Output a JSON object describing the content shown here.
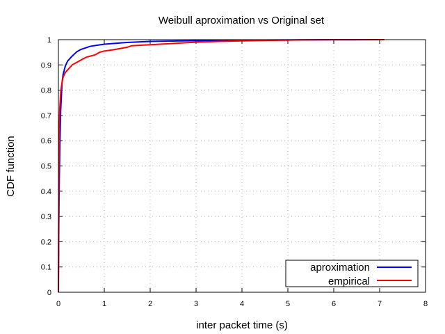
{
  "chart_data": {
    "type": "line",
    "title": "Weibull aproximation vs Original set",
    "xlabel": "inter packet time (s)",
    "ylabel": "CDF function",
    "xlim": [
      0,
      8
    ],
    "ylim": [
      0,
      1
    ],
    "xticks": [
      0,
      1,
      2,
      3,
      4,
      5,
      6,
      7,
      8
    ],
    "yticks": [
      0,
      0.1,
      0.2,
      0.3,
      0.4,
      0.5,
      0.6,
      0.7,
      0.8,
      0.9,
      1
    ],
    "grid": true,
    "legend_position": "bottom-right",
    "series": [
      {
        "name": "aproximation",
        "color": "#0000ff",
        "x": [
          0,
          0.01,
          0.02,
          0.03,
          0.05,
          0.08,
          0.1,
          0.15,
          0.2,
          0.3,
          0.4,
          0.5,
          0.7,
          1.0,
          1.5,
          2.0,
          3.0,
          4.0,
          5.0,
          6.0,
          7.1
        ],
        "y": [
          0,
          0.28,
          0.45,
          0.57,
          0.72,
          0.83,
          0.86,
          0.895,
          0.915,
          0.935,
          0.952,
          0.962,
          0.974,
          0.982,
          0.989,
          0.993,
          0.996,
          0.998,
          0.999,
          0.9995,
          1.0
        ]
      },
      {
        "name": "empirical",
        "color": "#ff0000",
        "x": [
          0,
          0.01,
          0.02,
          0.03,
          0.05,
          0.07,
          0.1,
          0.15,
          0.2,
          0.25,
          0.3,
          0.4,
          0.5,
          0.6,
          0.7,
          0.8,
          0.9,
          1.0,
          1.2,
          1.5,
          1.6,
          2.0,
          2.5,
          3.0,
          3.5,
          4.0,
          4.5,
          5.0,
          5.2,
          6.0,
          7.1
        ],
        "y": [
          0,
          0.5,
          0.65,
          0.73,
          0.79,
          0.82,
          0.85,
          0.87,
          0.88,
          0.89,
          0.9,
          0.91,
          0.92,
          0.93,
          0.935,
          0.94,
          0.95,
          0.955,
          0.96,
          0.97,
          0.976,
          0.98,
          0.985,
          0.99,
          0.993,
          0.995,
          0.997,
          0.998,
          0.999,
          0.9995,
          1.0
        ]
      }
    ]
  }
}
